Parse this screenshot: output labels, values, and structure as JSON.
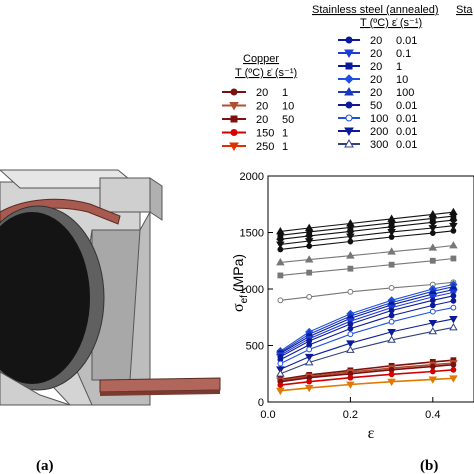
{
  "panels": {
    "a": "(a)",
    "b": "(b)"
  },
  "colors": {
    "copper_red": "#b00000",
    "copper_orange": "#e07a00",
    "steel_black": "#111111",
    "steel_gray": "#7a7a7a",
    "steel_blue": "#1030c8",
    "device_gray": "#c8c8c8",
    "strip_copper": "#a85a50"
  },
  "legend_copper": {
    "title": "Copper",
    "header": "T (ºC)  ε̇ (s⁻¹)",
    "entries": [
      {
        "T": "20",
        "rate": "1",
        "color": "#7a1010",
        "marker": "circle"
      },
      {
        "T": "20",
        "rate": "10",
        "color": "#b05030",
        "marker": "triangle-down"
      },
      {
        "T": "20",
        "rate": "50",
        "color": "#801010",
        "marker": "square"
      },
      {
        "T": "150",
        "rate": "1",
        "color": "#d40000",
        "marker": "circle"
      },
      {
        "T": "250",
        "rate": "1",
        "color": "#e03000",
        "marker": "triangle-down"
      }
    ]
  },
  "legend_steel": {
    "title": "Stainless steel (annealed)",
    "title_cut": "Sta",
    "header": "T (ºC)  ε̇ (s⁻¹)",
    "entries": [
      {
        "T": "20",
        "rate": "0.01",
        "color": "#0a1a9a",
        "marker": "circle"
      },
      {
        "T": "20",
        "rate": "0.1",
        "color": "#1e3cd8",
        "marker": "triangle-down"
      },
      {
        "T": "20",
        "rate": "1",
        "color": "#0a1a9a",
        "marker": "square"
      },
      {
        "T": "20",
        "rate": "10",
        "color": "#2050e0",
        "marker": "diamond"
      },
      {
        "T": "20",
        "rate": "100",
        "color": "#1838c0",
        "marker": "triangle-up"
      },
      {
        "T": "50",
        "rate": "0.01",
        "color": "#0a1a9a",
        "marker": "circle"
      },
      {
        "T": "100",
        "rate": "0.01",
        "color": "#2050e0",
        "marker": "circle-open"
      },
      {
        "T": "200",
        "rate": "0.01",
        "color": "#0a1a9a",
        "marker": "triangle-down"
      },
      {
        "T": "300",
        "rate": "0.01",
        "color": "#304080",
        "marker": "triangle-up-open"
      }
    ]
  },
  "chart_data": {
    "type": "line",
    "xlabel": "ε",
    "ylabel": "σ",
    "ylabel_sub": "ef",
    "ylabel_unit": "(MPa)",
    "xlim": [
      0,
      0.5
    ],
    "ylim": [
      0,
      2000
    ],
    "xticks": [
      "0.0",
      "0.2",
      "0.4"
    ],
    "xtick_values": [
      0,
      0.2,
      0.4
    ],
    "yticks": [
      "0",
      "500",
      "1000",
      "1500",
      "2000"
    ],
    "ytick_values": [
      0,
      500,
      1000,
      1500,
      2000
    ],
    "x": [
      0.03,
      0.1,
      0.2,
      0.3,
      0.4,
      0.45
    ],
    "series": [
      {
        "group": "black",
        "color": "#111111",
        "marker": "triangle-up",
        "values": [
          1510,
          1540,
          1580,
          1620,
          1660,
          1680
        ]
      },
      {
        "group": "black",
        "color": "#111111",
        "marker": "square",
        "values": [
          1475,
          1505,
          1545,
          1585,
          1625,
          1645
        ]
      },
      {
        "group": "black",
        "color": "#111111",
        "marker": "diamond",
        "values": [
          1440,
          1470,
          1510,
          1550,
          1590,
          1610
        ]
      },
      {
        "group": "black",
        "color": "#111111",
        "marker": "triangle-down",
        "values": [
          1395,
          1425,
          1465,
          1505,
          1540,
          1560
        ]
      },
      {
        "group": "black",
        "color": "#111111",
        "marker": "circle",
        "values": [
          1350,
          1380,
          1420,
          1460,
          1495,
          1515
        ]
      },
      {
        "group": "gray",
        "color": "#777777",
        "marker": "triangle-up",
        "values": [
          1235,
          1260,
          1295,
          1330,
          1365,
          1385
        ]
      },
      {
        "group": "gray",
        "color": "#777777",
        "marker": "square",
        "values": [
          1120,
          1145,
          1180,
          1215,
          1250,
          1270
        ]
      },
      {
        "group": "gray",
        "color": "#777777",
        "marker": "circle-open",
        "values": [
          900,
          930,
          975,
          1010,
          1040,
          1060
        ]
      },
      {
        "group": "blue",
        "color": "#2050e0",
        "marker": "diamond",
        "values": [
          450,
          620,
          780,
          900,
          1000,
          1040
        ]
      },
      {
        "group": "blue",
        "color": "#1838c0",
        "marker": "triangle-up",
        "values": [
          440,
          600,
          760,
          880,
          980,
          1020
        ]
      },
      {
        "group": "blue",
        "color": "#0a1a9a",
        "marker": "square",
        "values": [
          430,
          580,
          740,
          860,
          955,
          995
        ]
      },
      {
        "group": "blue",
        "color": "#1e3cd8",
        "marker": "triangle-down",
        "values": [
          415,
          560,
          715,
          835,
          930,
          970
        ]
      },
      {
        "group": "blue",
        "color": "#0a1a9a",
        "marker": "circle",
        "values": [
          400,
          540,
          690,
          810,
          900,
          940
        ]
      },
      {
        "group": "blue",
        "color": "#0a1a9a",
        "marker": "circle",
        "values": [
          375,
          505,
          650,
          765,
          855,
          895
        ]
      },
      {
        "group": "blue",
        "color": "#2050e0",
        "marker": "circle-open",
        "values": [
          340,
          465,
          600,
          710,
          800,
          835
        ]
      },
      {
        "group": "blue",
        "color": "#0a1a9a",
        "marker": "triangle-down",
        "values": [
          290,
          400,
          520,
          620,
          700,
          735
        ]
      },
      {
        "group": "blue",
        "color": "#304080",
        "marker": "triangle-up-open",
        "values": [
          250,
          350,
          460,
          550,
          625,
          660
        ]
      },
      {
        "group": "red",
        "color": "#801010",
        "marker": "square",
        "values": [
          200,
          240,
          280,
          320,
          355,
          370
        ]
      },
      {
        "group": "red",
        "color": "#b05030",
        "marker": "triangle-down",
        "values": [
          190,
          225,
          265,
          300,
          330,
          345
        ]
      },
      {
        "group": "red",
        "color": "#7a1010",
        "marker": "circle",
        "values": [
          180,
          215,
          250,
          285,
          315,
          330
        ]
      },
      {
        "group": "red",
        "color": "#d40000",
        "marker": "circle",
        "values": [
          150,
          180,
          215,
          245,
          270,
          285
        ]
      },
      {
        "group": "red",
        "color": "#e07a00",
        "marker": "triangle-down",
        "values": [
          100,
          125,
          155,
          180,
          200,
          210
        ]
      }
    ]
  }
}
